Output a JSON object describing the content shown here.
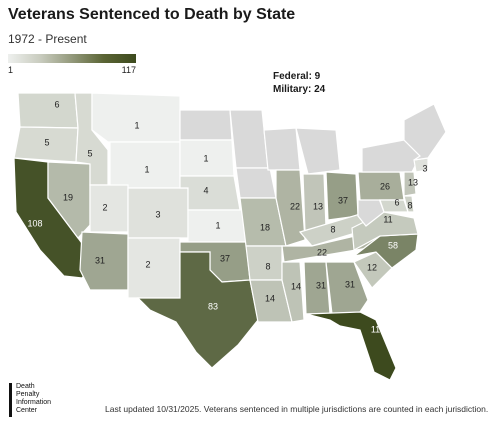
{
  "title": "Veterans Sentenced to Death by State",
  "subtitle": "1972 - Present",
  "legend": {
    "min_label": "1",
    "max_label": "117"
  },
  "other_jurisdictions": {
    "federal": "Federal: 9",
    "military": "Military: 24"
  },
  "logo": {
    "line1": "Death",
    "line2": "Penalty",
    "line3": "Information",
    "line4": "Center"
  },
  "footnote": "Last updated 10/31/2025. Veterans sentenced in multiple jurisdictions are counted in each jurisdiction.",
  "colors": {
    "no_data": "#d9d9d9",
    "scale_low": "#eef0ee",
    "scale_high": "#3d4a1e"
  },
  "states": [
    {
      "state": "WA",
      "value": "6"
    },
    {
      "state": "OR",
      "value": "5"
    },
    {
      "state": "CA",
      "value": "108"
    },
    {
      "state": "NV",
      "value": "19"
    },
    {
      "state": "ID",
      "value": "5"
    },
    {
      "state": "MT",
      "value": "1"
    },
    {
      "state": "WY",
      "value": "1"
    },
    {
      "state": "UT",
      "value": "2"
    },
    {
      "state": "CO",
      "value": "3"
    },
    {
      "state": "AZ",
      "value": "31"
    },
    {
      "state": "NM",
      "value": "2"
    },
    {
      "state": "SD",
      "value": "1"
    },
    {
      "state": "NE",
      "value": "4"
    },
    {
      "state": "KS",
      "value": "1"
    },
    {
      "state": "OK",
      "value": "37"
    },
    {
      "state": "TX",
      "value": "83"
    },
    {
      "state": "MO",
      "value": "18"
    },
    {
      "state": "AR",
      "value": "8"
    },
    {
      "state": "LA",
      "value": "14"
    },
    {
      "state": "IL",
      "value": "22"
    },
    {
      "state": "IN",
      "value": "13"
    },
    {
      "state": "OH",
      "value": "37"
    },
    {
      "state": "KY",
      "value": "8"
    },
    {
      "state": "TN",
      "value": "22"
    },
    {
      "state": "MS",
      "value": "14"
    },
    {
      "state": "AL",
      "value": "31"
    },
    {
      "state": "GA",
      "value": "31"
    },
    {
      "state": "FL",
      "value": "117"
    },
    {
      "state": "SC",
      "value": "12"
    },
    {
      "state": "NC",
      "value": "58"
    },
    {
      "state": "VA",
      "value": "11"
    },
    {
      "state": "PA",
      "value": "26"
    },
    {
      "state": "MD",
      "value": "6"
    },
    {
      "state": "DE",
      "value": "8"
    },
    {
      "state": "NJ",
      "value": "13"
    },
    {
      "state": "CT",
      "value": "3"
    }
  ]
}
